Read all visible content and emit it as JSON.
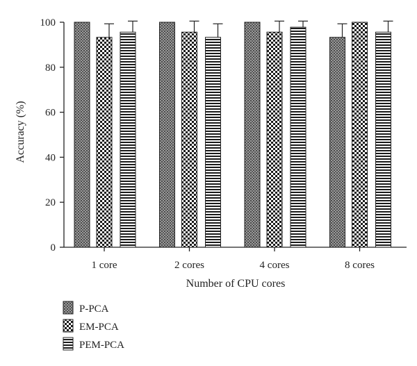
{
  "chart_data": {
    "type": "bar",
    "title": "",
    "xlabel": "Number of CPU cores",
    "ylabel": "Accuracy (%)",
    "ylim": [
      0,
      100
    ],
    "yticks": [
      0,
      20,
      40,
      60,
      80,
      100
    ],
    "grid": false,
    "legend_position": "bottom-left",
    "categories": [
      "1 core",
      "2 cores",
      "4 cores",
      "8 cores"
    ],
    "series": [
      {
        "name": "P-PCA",
        "pattern": "dots",
        "values": [
          100,
          100,
          100,
          93.3
        ],
        "errors": [
          0,
          0,
          0,
          6.0
        ]
      },
      {
        "name": "EM-PCA",
        "pattern": "checker",
        "values": [
          93.3,
          95.6,
          95.6,
          100
        ],
        "errors": [
          6.0,
          5.2,
          5.2,
          0
        ]
      },
      {
        "name": "PEM-PCA",
        "pattern": "hlines",
        "values": [
          95.6,
          93.3,
          97.8,
          95.6
        ],
        "errors": [
          5.2,
          6.0,
          3.0,
          5.2
        ]
      }
    ]
  }
}
